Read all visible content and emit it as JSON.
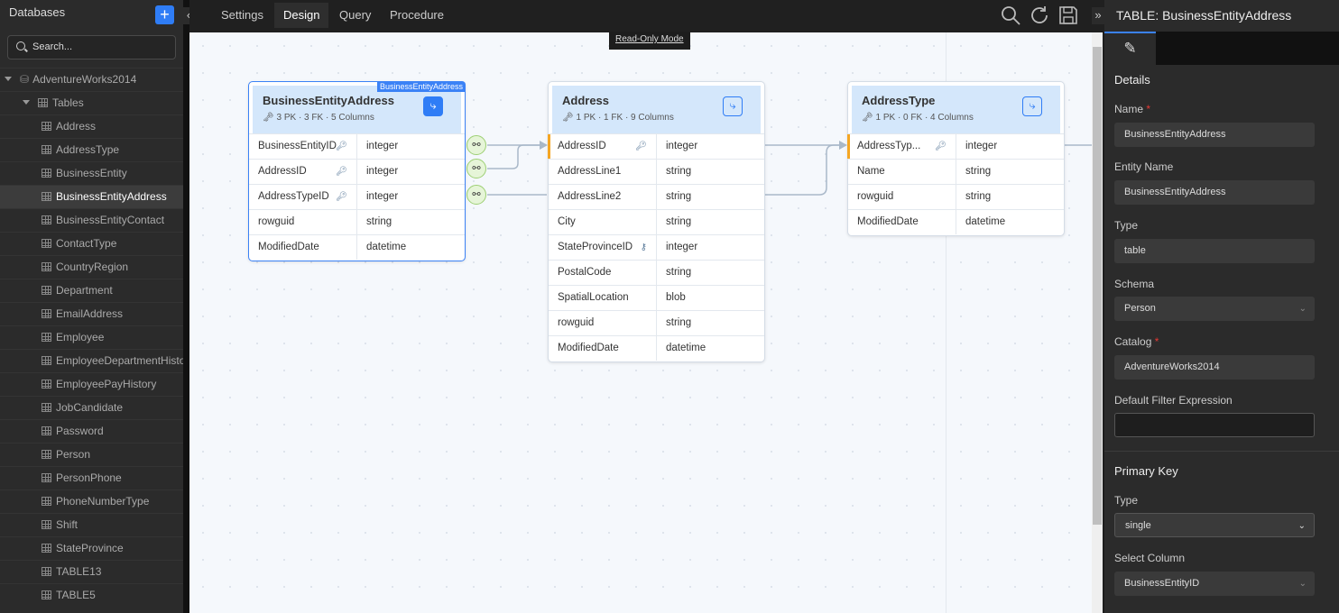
{
  "sidebar": {
    "title": "Databases",
    "add_label": "+",
    "search_placeholder": "Search...",
    "database": "AdventureWorks2014",
    "tables_label": "Tables",
    "tables": [
      "Address",
      "AddressType",
      "BusinessEntity",
      "BusinessEntityAddress",
      "BusinessEntityContact",
      "ContactType",
      "CountryRegion",
      "Department",
      "EmailAddress",
      "Employee",
      "EmployeeDepartmentHistory",
      "EmployeePayHistory",
      "JobCandidate",
      "Password",
      "Person",
      "PersonPhone",
      "PhoneNumberType",
      "Shift",
      "StateProvince",
      "TABLE13",
      "TABLE5"
    ],
    "selected": "BusinessEntityAddress"
  },
  "tabs": [
    "Settings",
    "Design",
    "Query",
    "Procedure"
  ],
  "active_tab": "Design",
  "toolbar": {
    "icons": [
      "search-icon",
      "refresh-icon",
      "save-icon"
    ]
  },
  "canvas": {
    "mode_label": "Read-Only Mode",
    "cards": [
      {
        "name": "BusinessEntityAddress",
        "badge": "BusinessEntityAddress",
        "meta": "3 PK ·  3 FK ·  5 Columns",
        "columns": [
          [
            "BusinessEntityID",
            "integer"
          ],
          [
            "AddressID",
            "integer"
          ],
          [
            "AddressTypeID",
            "integer"
          ],
          [
            "rowguid",
            "string"
          ],
          [
            "ModifiedDate",
            "datetime"
          ]
        ]
      },
      {
        "name": "Address",
        "meta": "1 PK ·  1 FK ·  9 Columns",
        "columns": [
          [
            "AddressID",
            "integer"
          ],
          [
            "AddressLine1",
            "string"
          ],
          [
            "AddressLine2",
            "string"
          ],
          [
            "City",
            "string"
          ],
          [
            "StateProvinceID",
            "integer"
          ],
          [
            "PostalCode",
            "string"
          ],
          [
            "SpatialLocation",
            "blob"
          ],
          [
            "rowguid",
            "string"
          ],
          [
            "ModifiedDate",
            "datetime"
          ]
        ]
      },
      {
        "name": "AddressType",
        "meta": "1 PK ·  0 FK ·  4 Columns",
        "columns": [
          [
            "AddressTyp...",
            "integer"
          ],
          [
            "Name",
            "string"
          ],
          [
            "rowguid",
            "string"
          ],
          [
            "ModifiedDate",
            "datetime"
          ]
        ]
      }
    ]
  },
  "panel": {
    "title": "TABLE: BusinessEntityAddress",
    "details": "Details",
    "name_label": "Name",
    "name": "BusinessEntityAddress",
    "entity_label": "Entity Name",
    "entity": "BusinessEntityAddress",
    "type_label": "Type",
    "type": "table",
    "schema_label": "Schema",
    "schema": "Person",
    "catalog_label": "Catalog",
    "catalog": "AdventureWorks2014",
    "filter_label": "Default Filter Expression",
    "filter": "",
    "pk_section": "Primary Key",
    "pk_type_label": "Type",
    "pk_type": "single",
    "select_col_label": "Select Column",
    "select_col": "BusinessEntityID",
    "accent": "#3b82f6"
  }
}
